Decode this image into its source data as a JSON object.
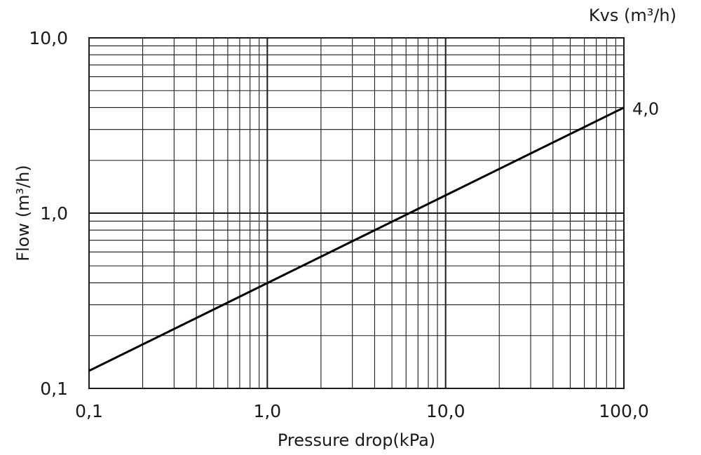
{
  "chart_data": {
    "type": "line",
    "x_scale": "log",
    "y_scale": "log",
    "xlim": [
      0.1,
      100
    ],
    "ylim": [
      0.1,
      10
    ],
    "xlabel": "Pressure drop(kPa)",
    "ylabel": "Flow  (m³/h)",
    "x_ticks": [
      {
        "value": 0.1,
        "label": "0,1"
      },
      {
        "value": 1,
        "label": "1,0"
      },
      {
        "value": 10,
        "label": "10,0"
      },
      {
        "value": 100,
        "label": "100,0"
      }
    ],
    "y_ticks": [
      {
        "value": 0.1,
        "label": "0,1"
      },
      {
        "value": 1,
        "label": "1,0"
      },
      {
        "value": 10,
        "label": "10,0"
      }
    ],
    "grid": true,
    "series_header": "Kvs (m³/h)",
    "series": [
      {
        "name": "4,0",
        "x": [
          0.1,
          100
        ],
        "y": [
          0.126,
          4.0
        ]
      }
    ]
  }
}
